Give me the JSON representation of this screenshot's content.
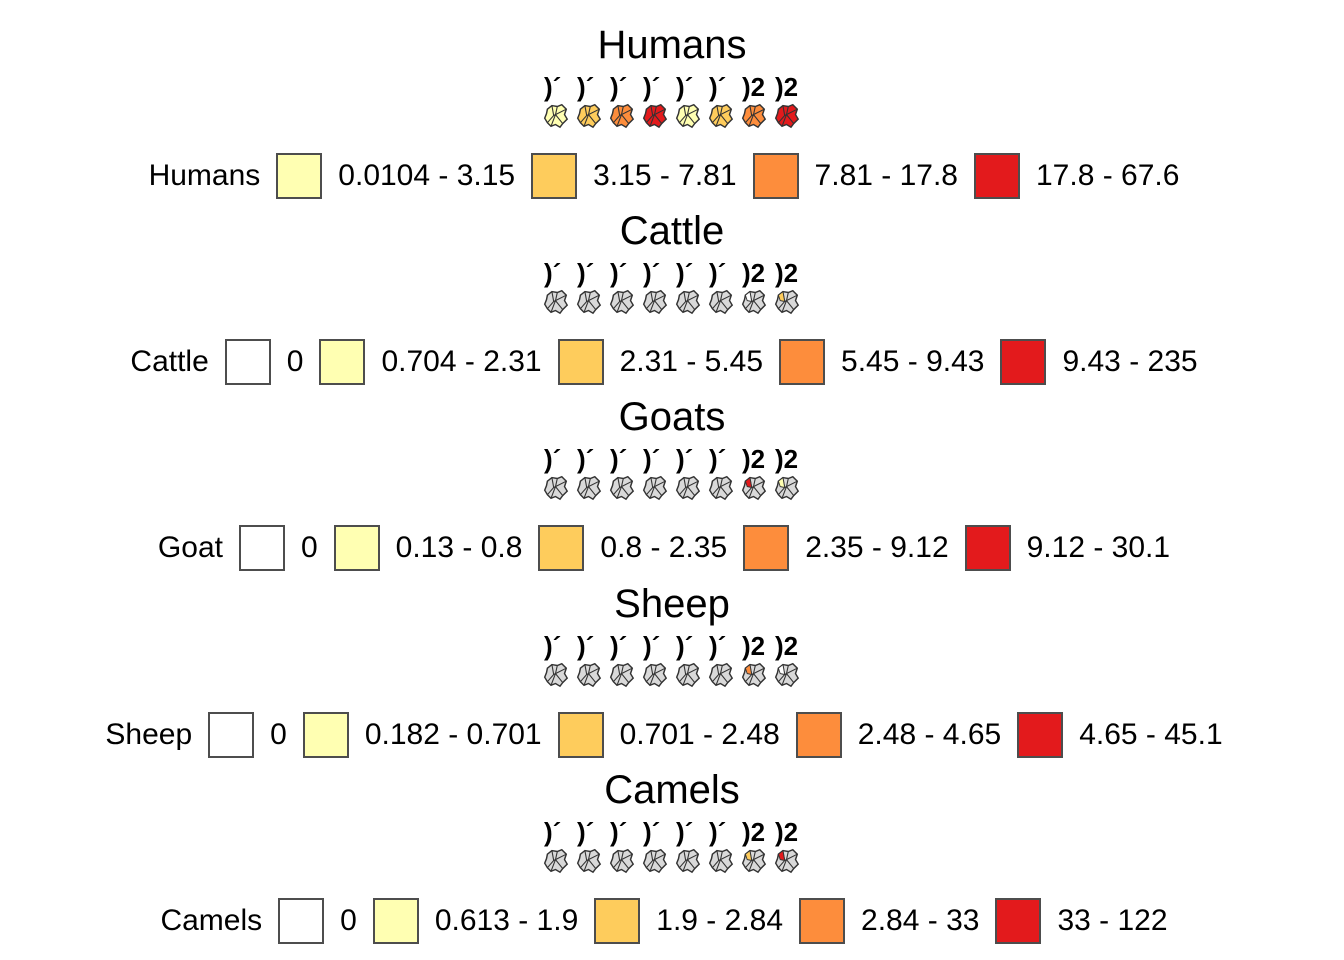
{
  "chart_data": [
    {
      "type": "choropleth-map",
      "title": "Humans",
      "legend_title": "Humans",
      "map_count": 8,
      "map_labels": [
        ")´",
        ")´",
        ")´",
        ")´",
        ")´",
        ")´",
        ")2",
        ")2"
      ],
      "classes": [
        {
          "label": "0.0104 - 3.15",
          "color": "#ffffb2"
        },
        {
          "label": "3.15 - 7.81",
          "color": "#fecc5c"
        },
        {
          "label": "7.81 - 17.8",
          "color": "#fd8d3c"
        },
        {
          "label": "17.8 - 67.6",
          "color": "#e31a1c"
        }
      ]
    },
    {
      "type": "choropleth-map",
      "title": "Cattle",
      "legend_title": "Cattle",
      "map_count": 8,
      "map_labels": [
        ")´",
        ")´",
        ")´",
        ")´",
        ")´",
        ")´",
        ")2",
        ")2"
      ],
      "classes": [
        {
          "label": "0",
          "color": "#ffffff"
        },
        {
          "label": "0.704 - 2.31",
          "color": "#ffffb2"
        },
        {
          "label": "2.31 - 5.45",
          "color": "#fecc5c"
        },
        {
          "label": "5.45 - 9.43",
          "color": "#fd8d3c"
        },
        {
          "label": "9.43 - 235",
          "color": "#e31a1c"
        }
      ]
    },
    {
      "type": "choropleth-map",
      "title": "Goats",
      "legend_title": "Goat",
      "map_count": 8,
      "map_labels": [
        ")´",
        ")´",
        ")´",
        ")´",
        ")´",
        ")´",
        ")2",
        ")2"
      ],
      "classes": [
        {
          "label": "0",
          "color": "#ffffff"
        },
        {
          "label": "0.13 - 0.8",
          "color": "#ffffb2"
        },
        {
          "label": "0.8 - 2.35",
          "color": "#fecc5c"
        },
        {
          "label": "2.35 - 9.12",
          "color": "#fd8d3c"
        },
        {
          "label": "9.12 - 30.1",
          "color": "#e31a1c"
        }
      ]
    },
    {
      "type": "choropleth-map",
      "title": "Sheep",
      "legend_title": "Sheep",
      "map_count": 8,
      "map_labels": [
        ")´",
        ")´",
        ")´",
        ")´",
        ")´",
        ")´",
        ")2",
        ")2"
      ],
      "classes": [
        {
          "label": "0",
          "color": "#ffffff"
        },
        {
          "label": "0.182 - 0.701",
          "color": "#ffffb2"
        },
        {
          "label": "0.701 - 2.48",
          "color": "#fecc5c"
        },
        {
          "label": "2.48 - 4.65",
          "color": "#fd8d3c"
        },
        {
          "label": "4.65 - 45.1",
          "color": "#e31a1c"
        }
      ]
    },
    {
      "type": "choropleth-map",
      "title": "Camels",
      "legend_title": "Camels",
      "map_count": 8,
      "map_labels": [
        ")´",
        ")´",
        ")´",
        ")´",
        ")´",
        ")´",
        ")2",
        ")2"
      ],
      "classes": [
        {
          "label": "0",
          "color": "#ffffff"
        },
        {
          "label": "0.613 - 1.9",
          "color": "#ffffb2"
        },
        {
          "label": "1.9 - 2.84",
          "color": "#fecc5c"
        },
        {
          "label": "2.84 - 33",
          "color": "#fd8d3c"
        },
        {
          "label": "33 - 122",
          "color": "#e31a1c"
        }
      ]
    }
  ]
}
